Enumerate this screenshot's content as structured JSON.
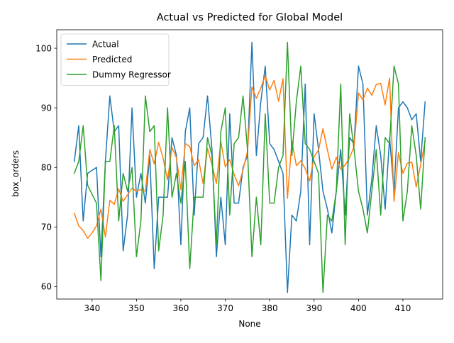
{
  "chart_data": {
    "type": "line",
    "title": "Actual vs Predicted for Global Model",
    "xlabel": "None",
    "ylabel": "box_orders",
    "xlim": [
      332.05,
      418.95
    ],
    "ylim": [
      57.9,
      103.1
    ],
    "xticks": [
      340,
      350,
      360,
      370,
      380,
      390,
      400,
      410
    ],
    "yticks": [
      60,
      70,
      80,
      90,
      100
    ],
    "grid": false,
    "legend_position": "upper-left",
    "x": [
      336,
      337,
      338,
      339,
      340,
      341,
      342,
      343,
      344,
      345,
      346,
      347,
      348,
      349,
      350,
      351,
      352,
      353,
      354,
      355,
      356,
      357,
      358,
      359,
      360,
      361,
      362,
      363,
      364,
      365,
      366,
      367,
      368,
      369,
      370,
      371,
      372,
      373,
      374,
      375,
      376,
      377,
      378,
      379,
      380,
      381,
      382,
      383,
      384,
      385,
      386,
      387,
      388,
      389,
      390,
      391,
      392,
      393,
      394,
      395,
      396,
      397,
      398,
      399,
      400,
      401,
      402,
      403,
      404,
      405,
      406,
      407,
      408,
      409,
      410,
      411,
      412,
      413,
      414,
      415
    ],
    "series": [
      {
        "name": "Actual",
        "color": "#1f77b4",
        "values": [
          81,
          87,
          71,
          79,
          79.5,
          80,
          65,
          81,
          92,
          86,
          87,
          66,
          72,
          90,
          75,
          79,
          74,
          82,
          63,
          75,
          75,
          75,
          85,
          82,
          67,
          86,
          90,
          72,
          84,
          85,
          92,
          83,
          65,
          75,
          67,
          89,
          74,
          74,
          80,
          82,
          101,
          82,
          91,
          97,
          84,
          83,
          81,
          79,
          59,
          72,
          71,
          76,
          94,
          67,
          89,
          83,
          76,
          73,
          69,
          76,
          83,
          72,
          85,
          84,
          97,
          94,
          72,
          78,
          87,
          82,
          73,
          85,
          76,
          90,
          91,
          90,
          88,
          89,
          81,
          91
        ]
      },
      {
        "name": "Predicted",
        "color": "#ff7f0e",
        "values": [
          72.3,
          70.2,
          69.4,
          68.1,
          69,
          70.2,
          73,
          68.3,
          74.5,
          73.8,
          76.4,
          74.3,
          75.4,
          76.5,
          76,
          76.3,
          76,
          83,
          80.6,
          84.2,
          81.5,
          77.9,
          83.3,
          81.6,
          76.3,
          84,
          83.5,
          80.3,
          81.3,
          77.3,
          83.2,
          80.5,
          77.3,
          84.3,
          80.1,
          81.3,
          78.8,
          76.9,
          79.6,
          82.7,
          93.5,
          91.6,
          93.3,
          95.4,
          93,
          94.6,
          91.1,
          94.9,
          74.8,
          84.4,
          80.3,
          81.1,
          79.8,
          77.7,
          81.8,
          82.9,
          86.5,
          82.9,
          79.7,
          81.7,
          79.7,
          80.4,
          81.6,
          83.5,
          92.5,
          91.3,
          93.3,
          92.1,
          93.9,
          94.1,
          90.5,
          95,
          74.3,
          82.5,
          79,
          80.7,
          80.9,
          76.7,
          80.5,
          84.4
        ]
      },
      {
        "name": "Dummy Regressor",
        "color": "#2ca02c",
        "values": [
          79,
          81,
          87,
          77,
          75.5,
          74,
          61,
          81,
          81,
          87,
          71,
          79,
          76,
          80,
          65,
          71,
          92,
          86,
          87,
          66,
          72,
          90,
          75,
          79,
          74,
          81,
          63,
          75,
          75,
          75,
          85,
          82,
          67,
          86,
          90,
          72,
          84,
          85,
          92,
          83,
          65,
          75,
          67,
          89,
          74,
          74,
          80,
          82,
          101,
          82,
          91,
          97,
          84,
          83,
          81,
          79,
          59,
          72,
          71,
          76,
          94,
          67,
          89,
          83,
          76,
          73,
          69,
          76,
          83,
          72,
          85,
          84,
          97,
          94,
          71,
          76,
          87,
          82,
          73,
          85
        ]
      }
    ]
  }
}
